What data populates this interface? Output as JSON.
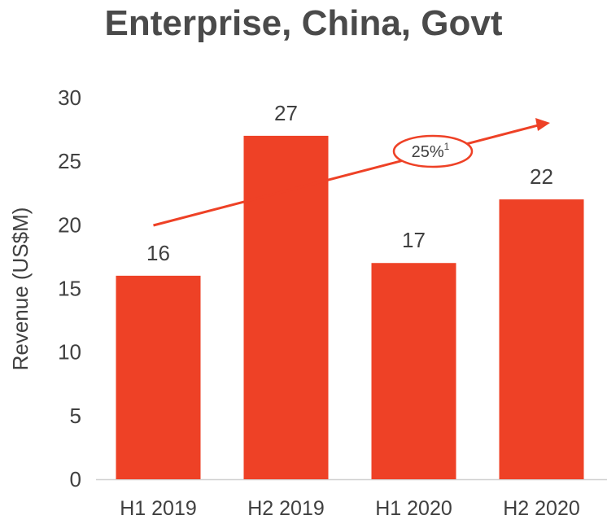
{
  "chart_data": {
    "type": "bar",
    "title": "Enterprise, China, Govt",
    "xlabel": "",
    "ylabel": "Revenue (US$M)",
    "categories": [
      "H1 2019",
      "H2 2019",
      "H1 2020",
      "H2 2020"
    ],
    "values": [
      16,
      27,
      17,
      22
    ],
    "data_labels": [
      "16",
      "27",
      "17",
      "22"
    ],
    "ylim": [
      0,
      30
    ],
    "yticks": [
      0,
      5,
      10,
      15,
      20,
      25,
      30
    ],
    "grid": false,
    "legend": "none",
    "bar_color": "#EE4126",
    "annotation": {
      "text": "25%",
      "superscript": "1",
      "style": "trend-arrow"
    }
  }
}
